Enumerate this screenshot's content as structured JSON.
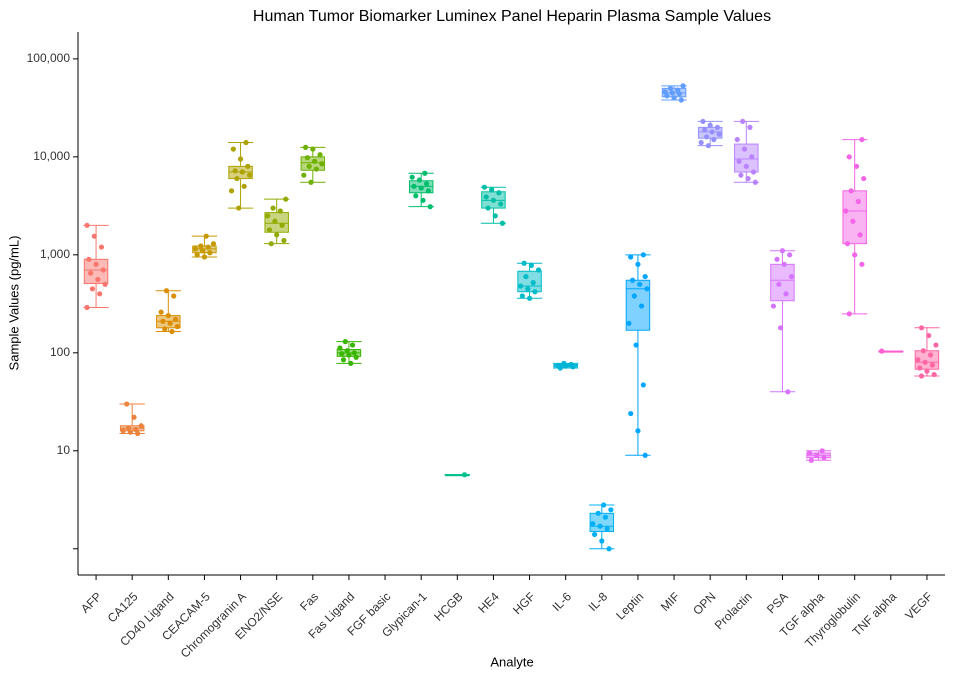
{
  "chart_data": {
    "type": "box",
    "title": "Human Tumor Biomarker Luminex Panel Heparin Plasma Sample Values",
    "x_label": "Analyte",
    "y_label": "Sample Values (pg/mL)",
    "log_scale": true,
    "ylim": [
      0.54,
      188000
    ],
    "yticks": [
      10,
      100,
      {
        "value": 1000,
        "label": "1,000"
      },
      {
        "value": 10000,
        "label": "10,000"
      },
      {
        "value": 100000,
        "label": "100,000"
      }
    ],
    "minor_yticks": [
      1
    ],
    "categories": [
      "AFP",
      "CA125",
      "CD40 Ligand",
      "CEACAM-5",
      "Chromogranin A",
      "ENO2/NSE",
      "Fas",
      "Fas Ligand",
      "FGF basic",
      "Glypican-1",
      "HCGB",
      "HE4",
      "HGF",
      "IL-6",
      "IL-8",
      "Leptin",
      "MIF",
      "OPN",
      "Prolactin",
      "PSA",
      "TGF alpha",
      "Thyroglobulin",
      "TNF alpha",
      "VEGF"
    ],
    "colors": [
      "#F8766D",
      "#EC823C",
      "#DB8E00",
      "#C69900",
      "#AEA200",
      "#93AA00",
      "#6FB000",
      "#39B600",
      "#00BA38",
      "#00BE6C",
      "#00C08B",
      "#00BFA6",
      "#00BCC8",
      "#00B4D8",
      "#00B0F6",
      "#00A5FF",
      "#619CFF",
      "#9590FF",
      "#B983FF",
      "#D575FE",
      "#E76BF3",
      "#F365E6",
      "#FD61D1",
      "#FF67A4"
    ],
    "boxes": [
      [
        290,
        510,
        700,
        900,
        2000
      ],
      [
        15,
        16,
        17,
        18,
        30
      ],
      [
        165,
        180,
        210,
        240,
        430
      ],
      [
        950,
        1050,
        1150,
        1230,
        1550
      ],
      [
        3000,
        6000,
        7000,
        8000,
        14000
      ],
      [
        1300,
        1700,
        2100,
        2700,
        3700
      ],
      [
        5500,
        7300,
        8700,
        10000,
        12500
      ],
      [
        78,
        92,
        100,
        108,
        130
      ],
      null,
      [
        3100,
        4300,
        5000,
        5700,
        6800
      ],
      [
        5.7,
        5.7,
        5.7,
        5.7,
        5.7
      ],
      [
        2100,
        3000,
        3600,
        4400,
        4900
      ],
      [
        360,
        420,
        480,
        680,
        820
      ],
      [
        70,
        72,
        74,
        76,
        78
      ],
      [
        1.0,
        1.5,
        1.7,
        2.3,
        2.8
      ],
      [
        9,
        170,
        450,
        550,
        1000
      ],
      [
        38000,
        41000,
        45000,
        50000,
        53000
      ],
      [
        13000,
        15500,
        18000,
        20000,
        23000
      ],
      [
        5500,
        7000,
        9500,
        13500,
        23000
      ],
      [
        40,
        340,
        550,
        800,
        1100
      ],
      [
        8,
        8.5,
        9,
        9.5,
        10
      ],
      [
        250,
        1300,
        2800,
        4500,
        15000
      ],
      [
        104,
        104,
        104,
        104,
        104
      ],
      [
        58,
        68,
        80,
        105,
        180
      ]
    ],
    "points": [
      [
        2000,
        1550,
        1200,
        900,
        800,
        700,
        650,
        560,
        500,
        450,
        400,
        290
      ],
      [
        30,
        22,
        18,
        17,
        16.5,
        16,
        15.5,
        15
      ],
      [
        430,
        380,
        260,
        240,
        220,
        210,
        200,
        185,
        175,
        165
      ],
      [
        1550,
        1300,
        1230,
        1200,
        1150,
        1100,
        1050,
        1000,
        950
      ],
      [
        14000,
        12000,
        9500,
        8000,
        7200,
        7000,
        6500,
        6000,
        5000,
        4500,
        3000
      ],
      [
        3700,
        3000,
        2800,
        2500,
        2200,
        2000,
        1800,
        1600,
        1400,
        1300
      ],
      [
        12500,
        12000,
        10500,
        9800,
        9000,
        8500,
        8000,
        7500,
        6500,
        5500
      ],
      [
        130,
        120,
        112,
        105,
        100,
        98,
        95,
        90,
        85,
        78
      ],
      [],
      [
        6800,
        6200,
        5800,
        5300,
        5000,
        4800,
        4500,
        4000,
        3600,
        3100
      ],
      [
        5.7
      ],
      [
        4900,
        4600,
        4300,
        3900,
        3600,
        3300,
        3000,
        2500,
        2100
      ],
      [
        820,
        780,
        700,
        600,
        520,
        480,
        450,
        420,
        380,
        360
      ],
      [
        78,
        76,
        74,
        73,
        72,
        70
      ],
      [
        2.8,
        2.5,
        2.3,
        2.1,
        1.8,
        1.7,
        1.6,
        1.4,
        1.2,
        1.0
      ],
      [
        1000,
        950,
        800,
        600,
        550,
        500,
        450,
        380,
        300,
        200,
        120,
        47,
        24,
        16,
        9
      ],
      [
        53000,
        50000,
        48000,
        46000,
        45000,
        44000,
        42000,
        40000,
        38000
      ],
      [
        23000,
        21000,
        20000,
        19000,
        18000,
        17000,
        16000,
        15000,
        14000,
        13000
      ],
      [
        23000,
        20000,
        15000,
        12000,
        10000,
        9000,
        8000,
        7000,
        6500,
        6000,
        5500
      ],
      [
        1100,
        1000,
        900,
        800,
        600,
        500,
        400,
        300,
        180,
        40
      ],
      [
        10,
        9.5,
        9,
        8.5,
        8
      ],
      [
        15000,
        10000,
        8000,
        6000,
        4500,
        3500,
        2800,
        2200,
        1600,
        1300,
        1000,
        800,
        250
      ],
      [
        104
      ],
      [
        180,
        150,
        120,
        105,
        95,
        85,
        80,
        75,
        70,
        65,
        60,
        58
      ]
    ]
  }
}
